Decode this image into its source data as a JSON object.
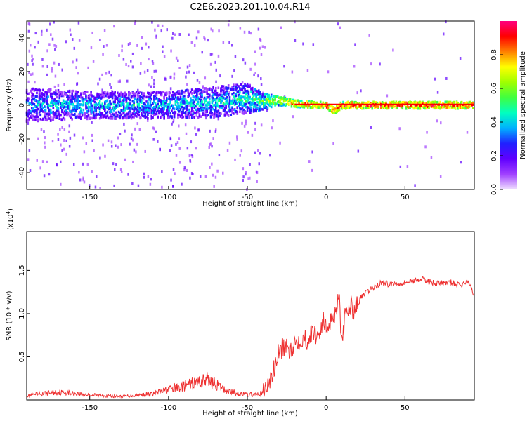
{
  "title": "C2E6.2023.201.10.04.R14",
  "chart_data": [
    {
      "type": "heatmap",
      "xlabel": "Height of straight line (km)",
      "ylabel": "Frequency (Hz)",
      "xlim": [
        -190,
        94
      ],
      "ylim": [
        -50,
        50
      ],
      "x_ticks": [
        -150,
        -100,
        -50,
        0,
        50
      ],
      "y_ticks": [
        -40,
        -20,
        0,
        20,
        40
      ],
      "colorbar": {
        "label": "Normalized spectral amplitude",
        "range": [
          0,
          1
        ],
        "ticks": [
          0.0,
          0.2,
          0.4,
          0.6,
          0.8
        ],
        "colors": [
          "#f0e0ff",
          "#a040ff",
          "#6000ff",
          "#2020ff",
          "#00b0ff",
          "#00ffc0",
          "#40ff40",
          "#a0ff00",
          "#ffff00",
          "#ff8000",
          "#ff0000",
          "#ff0080"
        ]
      },
      "bands": [
        {
          "x": -190,
          "center": 0,
          "halfwidth": 10,
          "level": 0.35
        },
        {
          "x": -150,
          "center": 0,
          "halfwidth": 8,
          "level": 0.4
        },
        {
          "x": -100,
          "center": 0,
          "halfwidth": 8,
          "level": 0.4
        },
        {
          "x": -70,
          "center": 2,
          "halfwidth": 9,
          "level": 0.42
        },
        {
          "x": -50,
          "center": 4,
          "halfwidth": 9,
          "level": 0.45
        },
        {
          "x": -40,
          "center": 2,
          "halfwidth": 5,
          "level": 0.55
        },
        {
          "x": -30,
          "center": 3,
          "halfwidth": 3,
          "level": 0.7
        },
        {
          "x": -20,
          "center": 1,
          "halfwidth": 2,
          "level": 0.8
        },
        {
          "x": 0,
          "center": 0,
          "halfwidth": 2,
          "level": 0.9
        },
        {
          "x": 5,
          "center": -3,
          "halfwidth": 2,
          "level": 0.85
        },
        {
          "x": 10,
          "center": 0,
          "halfwidth": 2,
          "level": 0.9
        },
        {
          "x": 94,
          "center": 0,
          "halfwidth": 2,
          "level": 0.9
        }
      ]
    },
    {
      "type": "line",
      "xlabel": "Height of straight line (km)",
      "ylabel": "SNR (10 * v/v)",
      "y_multiplier_label": "(x10",
      "y_multiplier_exp": "4",
      "y_multiplier_close": ")",
      "xlim": [
        -190,
        94
      ],
      "ylim": [
        0,
        1.95
      ],
      "x_ticks": [
        -150,
        -100,
        -50,
        0,
        50
      ],
      "y_ticks": [
        0.5,
        1.0,
        1.5
      ],
      "series": [
        {
          "color": "#ee3030",
          "x": [
            -190,
            -170,
            -150,
            -130,
            -110,
            -100,
            -90,
            -75,
            -65,
            -55,
            -45,
            -40,
            -36,
            -33,
            -30,
            -27,
            -24,
            -20,
            -16,
            -12,
            -8,
            -5,
            -2,
            0,
            3,
            6,
            8,
            10,
            12,
            15,
            18,
            22,
            26,
            30,
            35,
            40,
            50,
            60,
            70,
            80,
            85,
            90,
            94
          ],
          "values": [
            0.05,
            0.09,
            0.06,
            0.04,
            0.07,
            0.12,
            0.16,
            0.24,
            0.12,
            0.07,
            0.06,
            0.08,
            0.2,
            0.35,
            0.55,
            0.62,
            0.56,
            0.66,
            0.72,
            0.7,
            0.78,
            0.74,
            0.92,
            0.82,
            0.95,
            1.0,
            1.3,
            0.6,
            0.95,
            1.1,
            1.05,
            1.18,
            1.25,
            1.3,
            1.36,
            1.34,
            1.36,
            1.4,
            1.35,
            1.36,
            1.32,
            1.38,
            1.2
          ]
        }
      ]
    }
  ]
}
